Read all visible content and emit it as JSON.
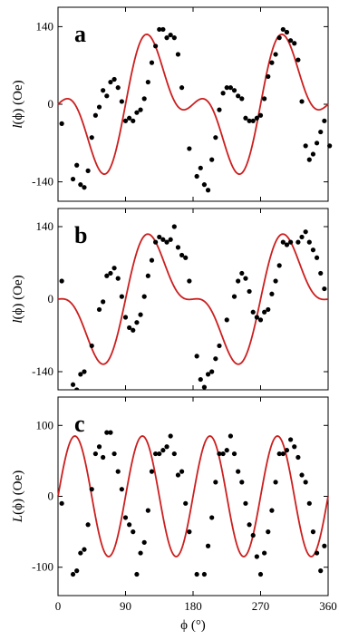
{
  "chart_data": [
    {
      "type": "scatter",
      "panel_label": "a",
      "ylabel": {
        "italic": "l",
        "rest": "(ϕ) (Oe)"
      },
      "xlabel": "",
      "xlim": [
        0,
        360
      ],
      "ylim": [
        -175,
        175
      ],
      "yticks": [
        -140,
        0,
        140
      ],
      "ytick_labels": [
        "-140",
        "0",
        "140"
      ],
      "series": [
        {
          "kind": "points",
          "color": "#000000",
          "x": [
            5,
            20,
            25,
            30,
            35,
            40,
            45,
            50,
            55,
            60,
            65,
            70,
            75,
            80,
            85,
            90,
            95,
            100,
            105,
            110,
            115,
            120,
            125,
            130,
            135,
            140,
            145,
            150,
            155,
            160,
            165,
            175,
            185,
            190,
            195,
            200,
            205,
            210,
            215,
            220,
            225,
            230,
            235,
            240,
            245,
            250,
            255,
            260,
            265,
            270,
            275,
            280,
            285,
            290,
            295,
            300,
            305,
            310,
            315,
            320,
            325,
            330,
            335,
            340,
            345,
            350,
            355,
            362
          ],
          "y": [
            -35,
            -135,
            -110,
            -145,
            -150,
            -120,
            -60,
            -20,
            -5,
            25,
            15,
            40,
            45,
            30,
            5,
            -30,
            -25,
            -30,
            -15,
            -10,
            10,
            40,
            75,
            105,
            135,
            135,
            120,
            125,
            120,
            90,
            30,
            -80,
            -130,
            -115,
            -145,
            -155,
            -100,
            -60,
            -10,
            20,
            30,
            30,
            25,
            15,
            10,
            -25,
            -30,
            -30,
            -25,
            -20,
            10,
            50,
            75,
            90,
            120,
            135,
            130,
            115,
            110,
            80,
            5,
            -75,
            -100,
            -90,
            -70,
            -50,
            -30,
            -75
          ]
        },
        {
          "kind": "fit-curve",
          "color": "#cc1f1f",
          "model": "I(phi) = -85 sin(2 phi) + 60 sin(4 phi)"
        }
      ]
    },
    {
      "type": "scatter",
      "panel_label": "b",
      "ylabel": {
        "italic": "l",
        "rest": "(ϕ) (Oe)"
      },
      "xlabel": "",
      "xlim": [
        0,
        360
      ],
      "ylim": [
        -175,
        175
      ],
      "yticks": [
        -140,
        0,
        140
      ],
      "ytick_labels": [
        "-140",
        "0",
        "140"
      ],
      "series": [
        {
          "kind": "points",
          "color": "#000000",
          "x": [
            5,
            20,
            25,
            30,
            35,
            45,
            55,
            60,
            65,
            70,
            75,
            80,
            85,
            90,
            95,
            100,
            105,
            110,
            115,
            120,
            125,
            130,
            135,
            140,
            145,
            150,
            155,
            160,
            165,
            170,
            175,
            185,
            190,
            195,
            200,
            205,
            210,
            215,
            225,
            235,
            240,
            245,
            250,
            255,
            260,
            265,
            270,
            275,
            280,
            285,
            290,
            295,
            300,
            305,
            310,
            320,
            325,
            330,
            335,
            340,
            345,
            350,
            355
          ],
          "y": [
            35,
            -165,
            -175,
            -145,
            -140,
            -90,
            -20,
            -5,
            45,
            50,
            60,
            40,
            5,
            -35,
            -55,
            -60,
            -45,
            -30,
            5,
            45,
            75,
            110,
            120,
            115,
            110,
            115,
            140,
            100,
            85,
            80,
            35,
            -110,
            -155,
            -170,
            -145,
            -140,
            -115,
            -90,
            -40,
            5,
            35,
            50,
            40,
            15,
            -25,
            -35,
            -40,
            -25,
            -20,
            10,
            35,
            65,
            110,
            105,
            110,
            110,
            120,
            130,
            110,
            95,
            80,
            50,
            20
          ]
        },
        {
          "kind": "fit-curve",
          "color": "#cc1f1f",
          "model": "I(phi) = -95 sin(2 phi) + 50 sin(4 phi)"
        }
      ]
    },
    {
      "type": "scatter",
      "panel_label": "c",
      "ylabel": {
        "italic": "L",
        "rest": "(ϕ) (Oe)"
      },
      "xlabel": "ϕ (°)",
      "xlim": [
        0,
        360
      ],
      "ylim": [
        -140,
        140
      ],
      "xticks": [
        0,
        90,
        180,
        270,
        360
      ],
      "xtick_labels": [
        "0",
        "90",
        "180",
        "270",
        "360"
      ],
      "yticks": [
        -100,
        0,
        100
      ],
      "ytick_labels": [
        "-100",
        "0",
        "100"
      ],
      "series": [
        {
          "kind": "points",
          "color": "#000000",
          "x": [
            5,
            20,
            25,
            30,
            35,
            40,
            45,
            50,
            55,
            60,
            65,
            70,
            75,
            80,
            85,
            90,
            95,
            100,
            105,
            110,
            115,
            120,
            125,
            130,
            135,
            140,
            145,
            150,
            155,
            160,
            165,
            170,
            175,
            185,
            195,
            200,
            205,
            210,
            215,
            220,
            225,
            230,
            235,
            240,
            245,
            250,
            255,
            260,
            265,
            270,
            275,
            280,
            285,
            290,
            295,
            300,
            305,
            310,
            315,
            320,
            325,
            330,
            335,
            340,
            345,
            350,
            355
          ],
          "y": [
            -10,
            -110,
            -105,
            -80,
            -75,
            -40,
            10,
            60,
            70,
            55,
            90,
            90,
            60,
            35,
            10,
            -30,
            -40,
            -50,
            -110,
            -80,
            -65,
            -20,
            35,
            60,
            60,
            65,
            70,
            85,
            60,
            30,
            35,
            -10,
            -50,
            -110,
            -110,
            -70,
            -30,
            20,
            60,
            60,
            65,
            85,
            60,
            35,
            20,
            -10,
            -40,
            -55,
            -85,
            -110,
            -80,
            -50,
            -20,
            20,
            60,
            60,
            65,
            80,
            70,
            55,
            30,
            20,
            -10,
            -50,
            -80,
            -105,
            -70
          ]
        },
        {
          "kind": "fit-curve",
          "color": "#cc1f1f",
          "model": "L(phi) = 85 sin(4 phi)"
        }
      ]
    }
  ]
}
